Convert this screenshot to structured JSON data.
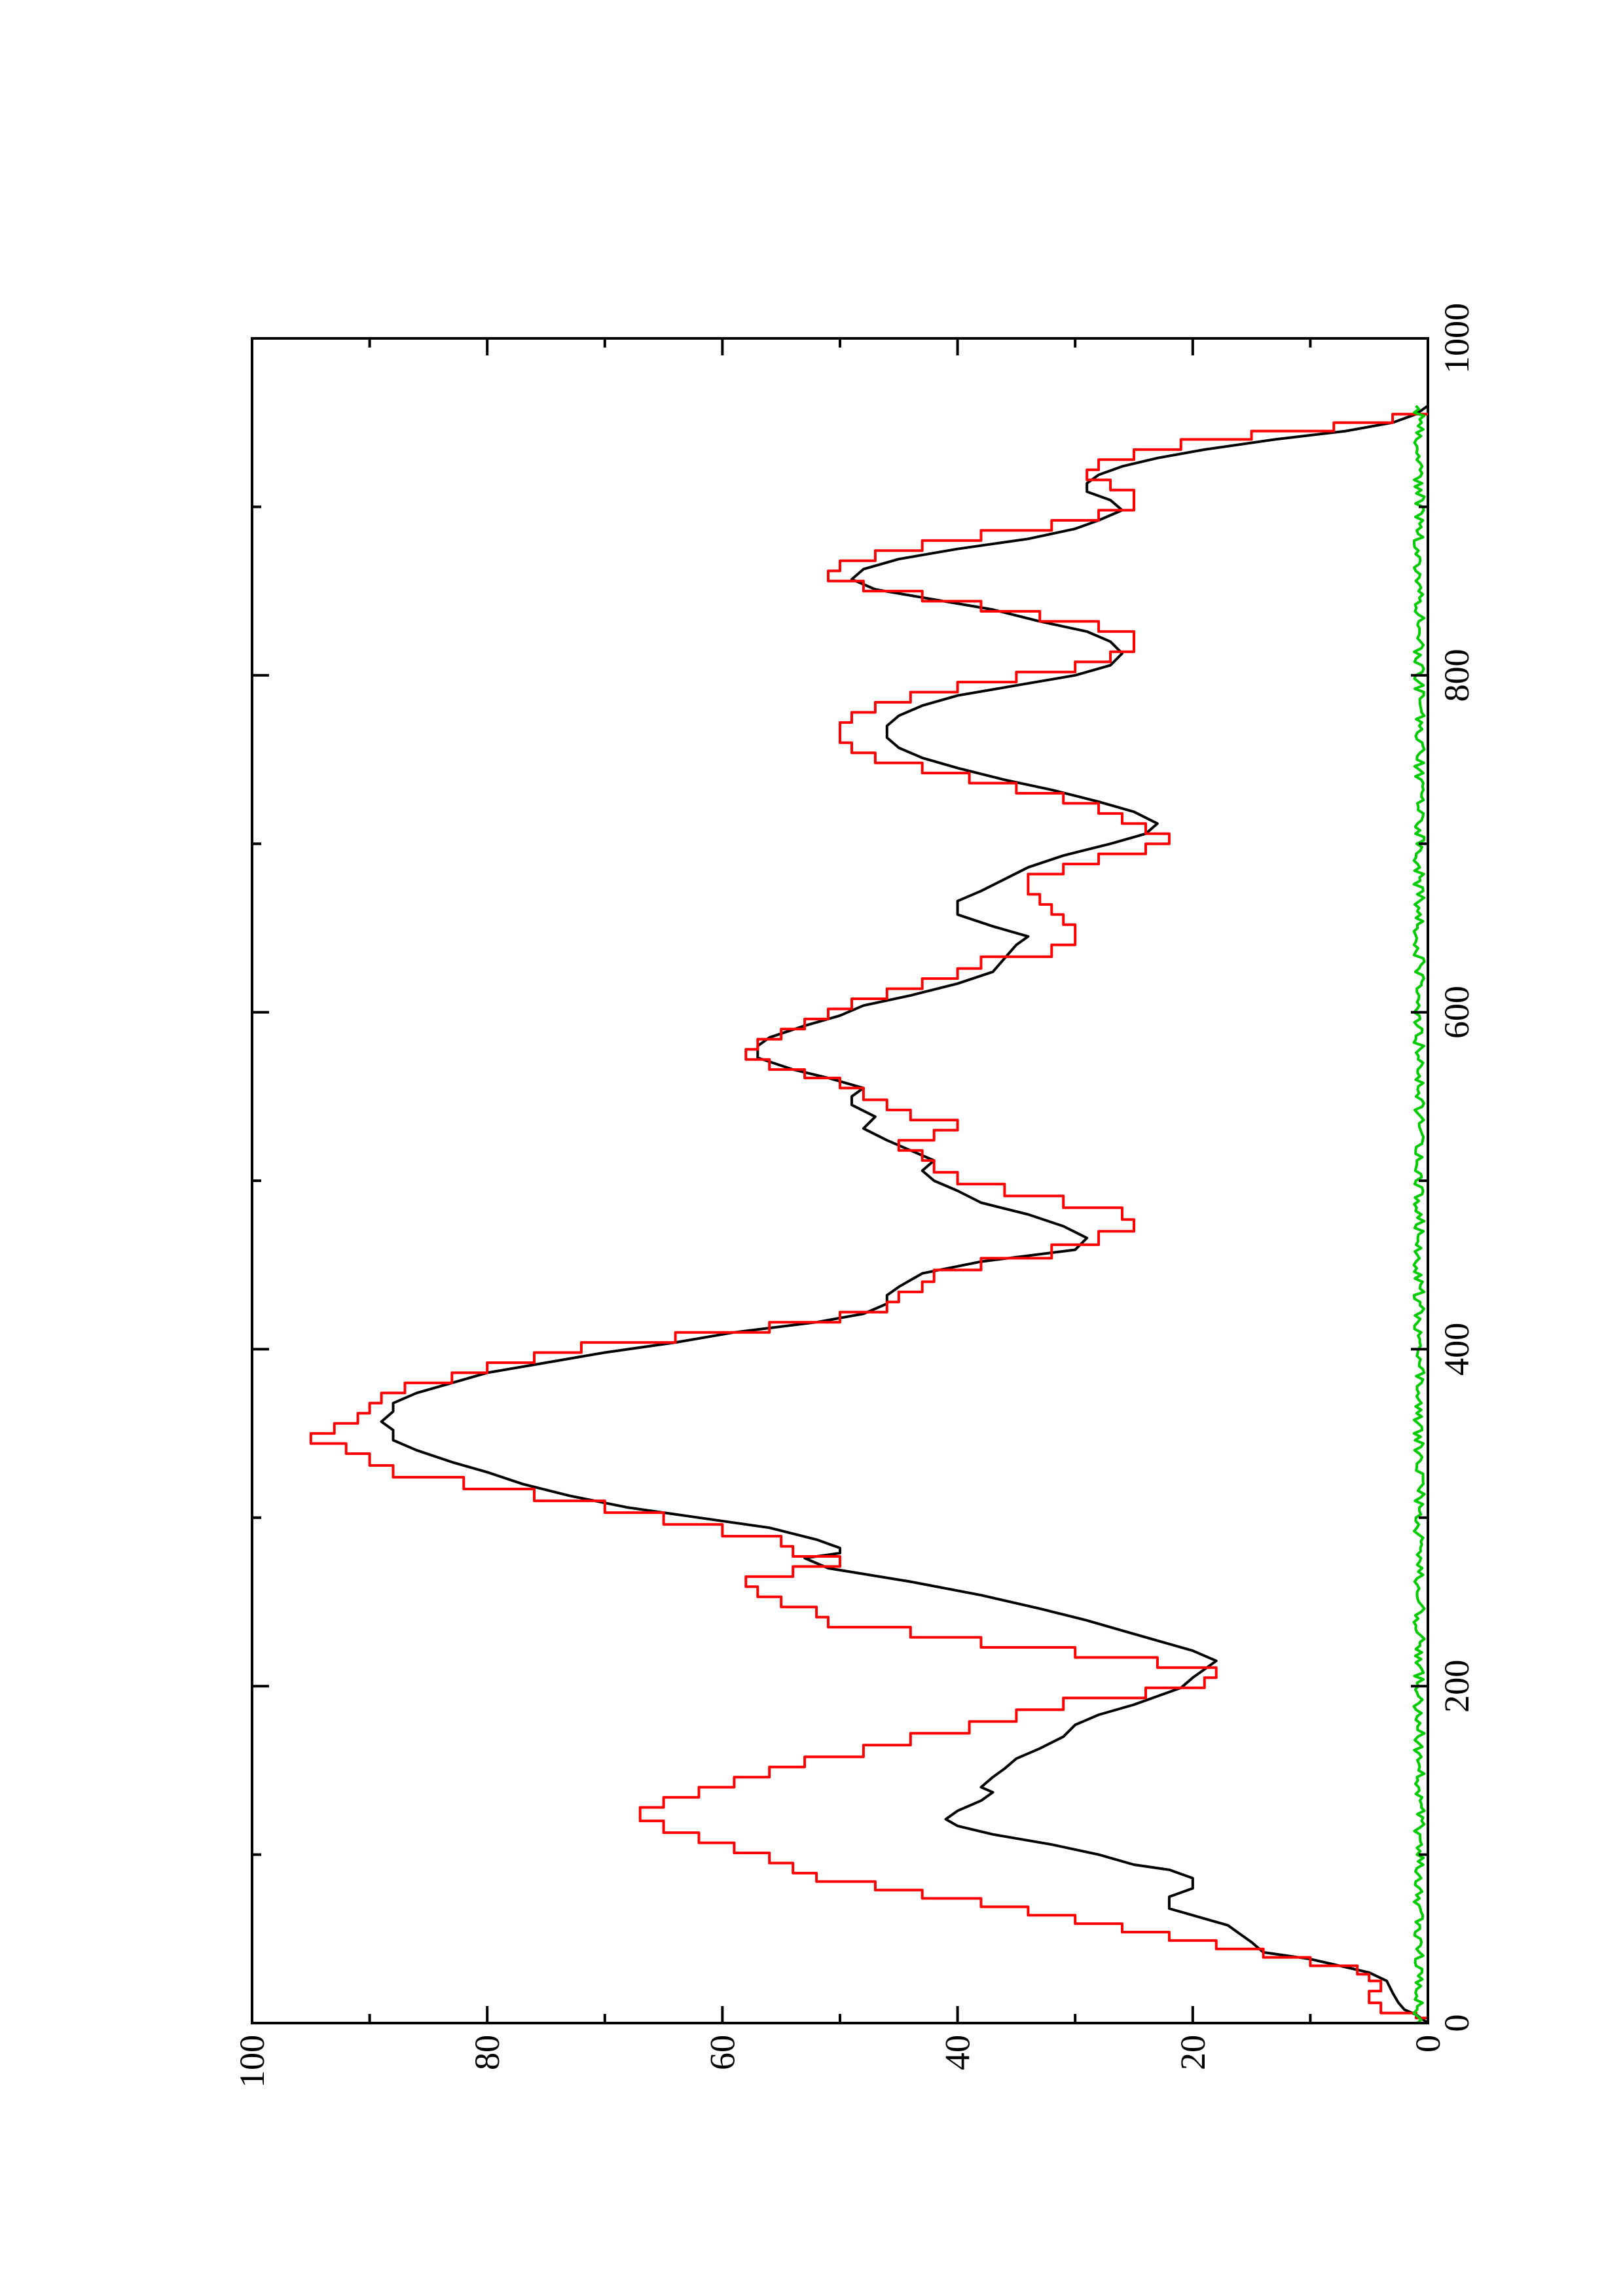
{
  "chart_data": {
    "type": "line",
    "title": "",
    "xlabel": "",
    "ylabel": "",
    "xlim": [
      0,
      1000
    ],
    "ylim": [
      0,
      100
    ],
    "x_ticks": [
      "0",
      "200",
      "400",
      "600",
      "800",
      "1000"
    ],
    "y_ticks": [
      "0",
      "20",
      "40",
      "60",
      "80",
      "100"
    ],
    "grid": false,
    "legend": "none",
    "series": [
      {
        "color": "#000000",
        "step": false,
        "points": [
          [
            0,
            0
          ],
          [
            5,
            1
          ],
          [
            8,
            2
          ],
          [
            12,
            2.5
          ],
          [
            18,
            3
          ],
          [
            25,
            3.5
          ],
          [
            30,
            5
          ],
          [
            38,
            10
          ],
          [
            42,
            14
          ],
          [
            48,
            15
          ],
          [
            53,
            16
          ],
          [
            58,
            17
          ],
          [
            62,
            19
          ],
          [
            68,
            22
          ],
          [
            75,
            22
          ],
          [
            80,
            20
          ],
          [
            86,
            20
          ],
          [
            91,
            22
          ],
          [
            94,
            25
          ],
          [
            100,
            28
          ],
          [
            106,
            32
          ],
          [
            112,
            37
          ],
          [
            117,
            40
          ],
          [
            121,
            41
          ],
          [
            126,
            40
          ],
          [
            132,
            38
          ],
          [
            137,
            37
          ],
          [
            140,
            38
          ],
          [
            146,
            37
          ],
          [
            151,
            36
          ],
          [
            157,
            35
          ],
          [
            163,
            33
          ],
          [
            170,
            31
          ],
          [
            177,
            30
          ],
          [
            183,
            28
          ],
          [
            189,
            25
          ],
          [
            194,
            23
          ],
          [
            199,
            21
          ],
          [
            205,
            20
          ],
          [
            210,
            19
          ],
          [
            215,
            18
          ],
          [
            221,
            20
          ],
          [
            227,
            23
          ],
          [
            233,
            26
          ],
          [
            239,
            29
          ],
          [
            246,
            33
          ],
          [
            254,
            38
          ],
          [
            262,
            44
          ],
          [
            270,
            51
          ],
          [
            276,
            53
          ],
          [
            279,
            50
          ],
          [
            282,
            50
          ],
          [
            287,
            52
          ],
          [
            294,
            56
          ],
          [
            300,
            62
          ],
          [
            306,
            68
          ],
          [
            313,
            73
          ],
          [
            320,
            77
          ],
          [
            327,
            80
          ],
          [
            333,
            83
          ],
          [
            340,
            86
          ],
          [
            346,
            88
          ],
          [
            352,
            88
          ],
          [
            357,
            89
          ],
          [
            363,
            88
          ],
          [
            368,
            88
          ],
          [
            374,
            86
          ],
          [
            380,
            83
          ],
          [
            386,
            80
          ],
          [
            392,
            75
          ],
          [
            398,
            70
          ],
          [
            404,
            64
          ],
          [
            410,
            59
          ],
          [
            416,
            52
          ],
          [
            421,
            48
          ],
          [
            427,
            46
          ],
          [
            432,
            46
          ],
          [
            437,
            45
          ],
          [
            445,
            43
          ],
          [
            452,
            38
          ],
          [
            459,
            30
          ],
          [
            466,
            29
          ],
          [
            473,
            31
          ],
          [
            480,
            34
          ],
          [
            487,
            38
          ],
          [
            494,
            40
          ],
          [
            500,
            42
          ],
          [
            506,
            43
          ],
          [
            512,
            42
          ],
          [
            518,
            44
          ],
          [
            524,
            46
          ],
          [
            531,
            48
          ],
          [
            538,
            47
          ],
          [
            545,
            49
          ],
          [
            550,
            49
          ],
          [
            555,
            48
          ],
          [
            561,
            51
          ],
          [
            566,
            54
          ],
          [
            573,
            57
          ],
          [
            580,
            57
          ],
          [
            585,
            56
          ],
          [
            592,
            53
          ],
          [
            598,
            50
          ],
          [
            604,
            48
          ],
          [
            610,
            44
          ],
          [
            617,
            40
          ],
          [
            624,
            37
          ],
          [
            632,
            36
          ],
          [
            640,
            35
          ],
          [
            645,
            34
          ],
          [
            651,
            37
          ],
          [
            658,
            40
          ],
          [
            666,
            40
          ],
          [
            672,
            38
          ],
          [
            679,
            36
          ],
          [
            686,
            34
          ],
          [
            693,
            31
          ],
          [
            700,
            27
          ],
          [
            706,
            24
          ],
          [
            712,
            23
          ],
          [
            719,
            25
          ],
          [
            725,
            28
          ],
          [
            732,
            32
          ],
          [
            738,
            36
          ],
          [
            745,
            40
          ],
          [
            751,
            43
          ],
          [
            757,
            45
          ],
          [
            763,
            46
          ],
          [
            770,
            46
          ],
          [
            776,
            45
          ],
          [
            782,
            43
          ],
          [
            788,
            40
          ],
          [
            794,
            35
          ],
          [
            800,
            30
          ],
          [
            806,
            27
          ],
          [
            813,
            26
          ],
          [
            820,
            27
          ],
          [
            826,
            29
          ],
          [
            832,
            33
          ],
          [
            839,
            37
          ],
          [
            845,
            42
          ],
          [
            851,
            47
          ],
          [
            857,
            49
          ],
          [
            863,
            48
          ],
          [
            869,
            45
          ],
          [
            875,
            40
          ],
          [
            881,
            34
          ],
          [
            887,
            30
          ],
          [
            892,
            28
          ],
          [
            898,
            26
          ],
          [
            904,
            27
          ],
          [
            909,
            29
          ],
          [
            914,
            29
          ],
          [
            919,
            28
          ],
          [
            924,
            26
          ],
          [
            929,
            23
          ],
          [
            934,
            19
          ],
          [
            940,
            13
          ],
          [
            945,
            7
          ],
          [
            950,
            3
          ],
          [
            955,
            1
          ],
          [
            960,
            0
          ]
        ]
      },
      {
        "color": "#ff0000",
        "step": true,
        "points": [
          [
            0,
            0
          ],
          [
            3,
            1
          ],
          [
            6,
            4
          ],
          [
            12,
            5
          ],
          [
            19,
            4
          ],
          [
            25,
            5
          ],
          [
            29,
            6
          ],
          [
            34,
            10
          ],
          [
            39,
            14
          ],
          [
            44,
            18
          ],
          [
            49,
            22
          ],
          [
            54,
            26
          ],
          [
            59,
            30
          ],
          [
            64,
            34
          ],
          [
            69,
            38
          ],
          [
            74,
            43
          ],
          [
            79,
            47
          ],
          [
            84,
            52
          ],
          [
            89,
            54
          ],
          [
            95,
            56
          ],
          [
            101,
            59
          ],
          [
            107,
            62
          ],
          [
            113,
            65
          ],
          [
            120,
            67
          ],
          [
            128,
            65
          ],
          [
            134,
            62
          ],
          [
            140,
            59
          ],
          [
            146,
            56
          ],
          [
            152,
            53
          ],
          [
            158,
            48
          ],
          [
            165,
            44
          ],
          [
            172,
            39
          ],
          [
            179,
            35
          ],
          [
            186,
            31
          ],
          [
            193,
            24
          ],
          [
            199,
            19
          ],
          [
            205,
            18
          ],
          [
            211,
            23
          ],
          [
            217,
            30
          ],
          [
            223,
            38
          ],
          [
            229,
            44
          ],
          [
            235,
            51
          ],
          [
            241,
            52
          ],
          [
            247,
            55
          ],
          [
            253,
            57
          ],
          [
            259,
            58
          ],
          [
            265,
            54
          ],
          [
            271,
            50
          ],
          [
            277,
            54
          ],
          [
            283,
            55
          ],
          [
            289,
            60
          ],
          [
            296,
            65
          ],
          [
            303,
            70
          ],
          [
            310,
            76
          ],
          [
            317,
            82
          ],
          [
            324,
            88
          ],
          [
            331,
            90
          ],
          [
            338,
            92
          ],
          [
            344,
            95
          ],
          [
            350,
            93
          ],
          [
            356,
            91
          ],
          [
            362,
            90
          ],
          [
            368,
            89
          ],
          [
            374,
            87
          ],
          [
            380,
            83
          ],
          [
            386,
            80
          ],
          [
            392,
            76
          ],
          [
            398,
            72
          ],
          [
            404,
            64
          ],
          [
            410,
            56
          ],
          [
            416,
            50
          ],
          [
            422,
            46
          ],
          [
            428,
            45
          ],
          [
            434,
            43
          ],
          [
            440,
            42
          ],
          [
            447,
            38
          ],
          [
            454,
            32
          ],
          [
            462,
            28
          ],
          [
            470,
            25
          ],
          [
            477,
            26
          ],
          [
            484,
            31
          ],
          [
            491,
            36
          ],
          [
            498,
            40
          ],
          [
            505,
            42
          ],
          [
            512,
            43
          ],
          [
            518,
            45
          ],
          [
            524,
            42
          ],
          [
            530,
            40
          ],
          [
            536,
            44
          ],
          [
            542,
            46
          ],
          [
            548,
            48
          ],
          [
            555,
            50
          ],
          [
            561,
            53
          ],
          [
            566,
            56
          ],
          [
            572,
            58
          ],
          [
            578,
            57
          ],
          [
            584,
            55
          ],
          [
            590,
            53
          ],
          [
            596,
            51
          ],
          [
            602,
            49
          ],
          [
            608,
            46
          ],
          [
            614,
            43
          ],
          [
            620,
            40
          ],
          [
            626,
            38
          ],
          [
            633,
            32
          ],
          [
            640,
            30
          ],
          [
            646,
            30
          ],
          [
            652,
            31
          ],
          [
            658,
            32
          ],
          [
            664,
            33
          ],
          [
            670,
            34
          ],
          [
            676,
            34
          ],
          [
            682,
            31
          ],
          [
            688,
            28
          ],
          [
            694,
            24
          ],
          [
            700,
            22
          ],
          [
            706,
            24
          ],
          [
            712,
            26
          ],
          [
            718,
            28
          ],
          [
            724,
            31
          ],
          [
            730,
            35
          ],
          [
            736,
            39
          ],
          [
            742,
            43
          ],
          [
            748,
            47
          ],
          [
            754,
            49
          ],
          [
            760,
            50
          ],
          [
            766,
            50
          ],
          [
            772,
            49
          ],
          [
            778,
            47
          ],
          [
            784,
            44
          ],
          [
            790,
            40
          ],
          [
            796,
            35
          ],
          [
            802,
            30
          ],
          [
            808,
            27
          ],
          [
            814,
            25
          ],
          [
            820,
            25
          ],
          [
            826,
            28
          ],
          [
            832,
            33
          ],
          [
            838,
            38
          ],
          [
            844,
            43
          ],
          [
            850,
            48
          ],
          [
            856,
            51
          ],
          [
            862,
            50
          ],
          [
            868,
            47
          ],
          [
            874,
            43
          ],
          [
            880,
            38
          ],
          [
            886,
            32
          ],
          [
            892,
            28
          ],
          [
            898,
            25
          ],
          [
            904,
            25
          ],
          [
            910,
            27
          ],
          [
            916,
            29
          ],
          [
            922,
            28
          ],
          [
            928,
            25
          ],
          [
            934,
            21
          ],
          [
            940,
            15
          ],
          [
            945,
            8
          ],
          [
            950,
            3
          ],
          [
            955,
            0
          ]
        ]
      },
      {
        "color": "#00cc00",
        "step": false,
        "noise": true,
        "xrange": [
          0,
          960
        ],
        "step_x": 2,
        "amplitude": 0.9,
        "base": 0.3
      }
    ]
  }
}
